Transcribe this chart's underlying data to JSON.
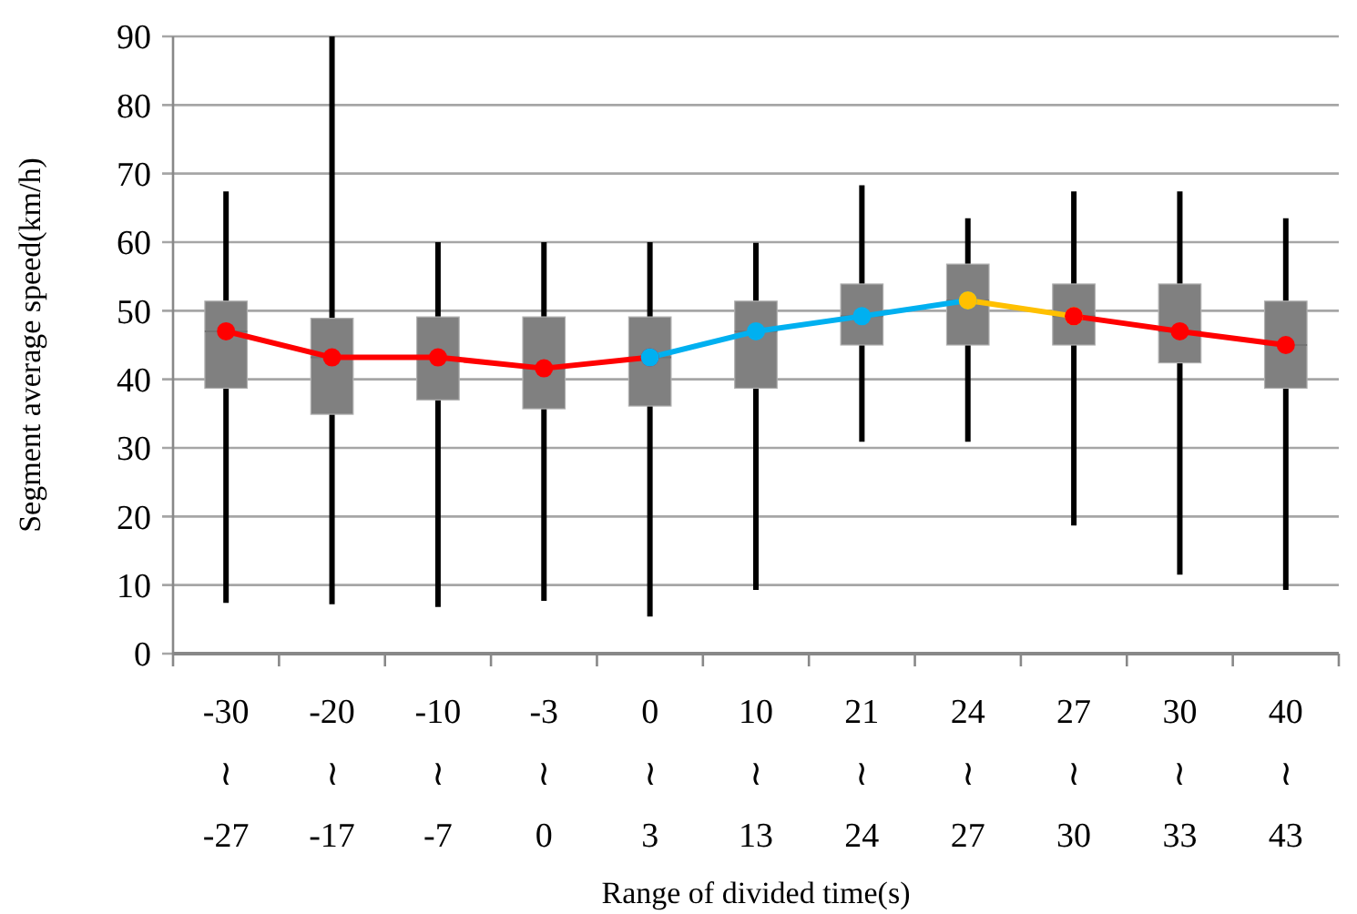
{
  "chart_data": {
    "type": "box",
    "xlabel": "Range of divided time(s)",
    "ylabel": "Segment average speed(km/h)",
    "categories": [
      "-30\n≀\n-27",
      "-20\n≀\n-17",
      "-10\n≀\n-7",
      "-3\n≀\n0",
      "0\n≀\n3",
      "10\n≀\n13",
      "21\n≀\n24",
      "24\n≀\n27",
      "27\n≀\n30",
      "30\n≀\n33",
      "40\n≀\n43"
    ],
    "color": "#808080",
    "boxes": [
      {
        "low": 7.4,
        "q1": 38.7,
        "median": 47,
        "q3": 51.4,
        "high": 67.4
      },
      {
        "low": 7.2,
        "q1": 34.9,
        "median": 43.2,
        "q3": 48.9,
        "high": 90
      },
      {
        "low": 6.8,
        "q1": 37,
        "median": 43.2,
        "q3": 49.1,
        "high": 60
      },
      {
        "low": 7.7,
        "q1": 35.7,
        "median": 41.6,
        "q3": 49.1,
        "high": 60
      },
      {
        "low": 5.4,
        "q1": 36.1,
        "median": 43.2,
        "q3": 49.1,
        "high": 60
      },
      {
        "low": 9.3,
        "q1": 38.7,
        "median": 47,
        "q3": 51.4,
        "high": 59.9
      },
      {
        "low": 30.9,
        "q1": 45,
        "median": 49.2,
        "q3": 53.9,
        "high": 68.3
      },
      {
        "low": 30.9,
        "q1": 45,
        "median": 51.5,
        "q3": 56.8,
        "high": 63.5
      },
      {
        "low": 18.7,
        "q1": 45,
        "median": 49.2,
        "q3": 53.9,
        "high": 67.4
      },
      {
        "low": 11.5,
        "q1": 42.4,
        "median": 47,
        "q3": 53.9,
        "high": 67.4
      },
      {
        "low": 9.3,
        "q1": 38.7,
        "median": 45,
        "q3": 51.4,
        "high": 63.5
      }
    ],
    "series": [
      {
        "type": "line",
        "color": "#ff0000",
        "values": [
          47,
          43.2,
          43.2,
          41.6,
          43.2,
          null,
          null,
          null,
          null,
          null,
          null
        ]
      },
      {
        "type": "line",
        "color": "#00b0f0",
        "values": [
          null,
          null,
          null,
          null,
          43.2,
          47,
          49.2,
          51.5,
          null,
          null,
          null
        ]
      },
      {
        "type": "line",
        "color": "#ffc000",
        "values": [
          null,
          null,
          null,
          null,
          null,
          null,
          null,
          51.5,
          49.2,
          null,
          null
        ]
      },
      {
        "type": "line",
        "color": "#ff0000",
        "values": [
          null,
          null,
          null,
          null,
          null,
          null,
          null,
          null,
          49.2,
          47,
          45
        ]
      }
    ],
    "marker": "circle",
    "line_style": "solid",
    "ylim": [
      0,
      90
    ],
    "yticks": [
      0,
      10,
      20,
      30,
      40,
      50,
      60,
      70,
      80,
      90
    ],
    "grid": "y"
  }
}
